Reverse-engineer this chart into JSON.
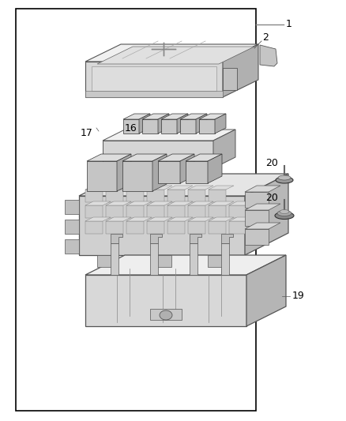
{
  "bg_color": "#ffffff",
  "border_color": "#000000",
  "text_color": "#000000",
  "fig_width": 4.38,
  "fig_height": 5.33,
  "dpi": 100,
  "border": [
    0.045,
    0.025,
    0.695,
    0.955
  ],
  "line_color": "#555555",
  "dark_line": "#333333",
  "light_fill": "#f0f0f0",
  "mid_fill": "#d8d8d8",
  "dark_fill": "#b0b0b0"
}
